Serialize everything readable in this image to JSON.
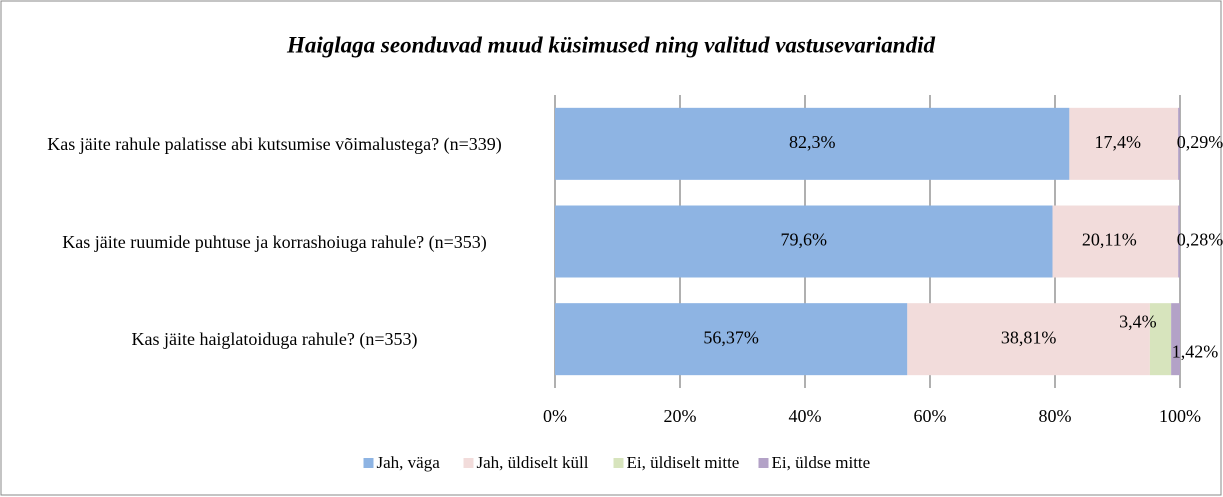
{
  "chart_data": {
    "type": "stacked-bar-horizontal",
    "title": "Haiglaga seonduvad muud küsimused ning valitud vastusevariandid",
    "categories": [
      "Kas jäite rahule palatisse abi kutsumise võimalustega? (n=339)",
      "Kas jäite ruumide puhtuse ja korrashoiuga rahule? (n=353)",
      "Kas jäite haiglatoiduga rahule? (n=353)"
    ],
    "series": [
      {
        "name": "Jah, väga",
        "color": "#8eb4e3",
        "values": [
          82.3,
          79.6,
          56.37
        ],
        "value_labels": [
          "82,3%",
          "79,6%",
          "56,37%"
        ]
      },
      {
        "name": "Jah, üldiselt küll",
        "color": "#f2dcdb",
        "values": [
          17.4,
          20.11,
          38.81
        ],
        "value_labels": [
          "17,4%",
          "20,11%",
          "38,81%"
        ]
      },
      {
        "name": "Ei, üldiselt mitte",
        "color": "#d7e4bd",
        "values": [
          0,
          0,
          3.4
        ],
        "value_labels": [
          null,
          null,
          "3,4%"
        ]
      },
      {
        "name": "Ei, üldse mitte",
        "color": "#b3a2c7",
        "values": [
          0.29,
          0.28,
          1.42
        ],
        "value_labels": [
          "0,29%",
          "0,28%",
          "1,42%"
        ]
      }
    ],
    "xlim": [
      0,
      100
    ],
    "xticks": [
      {
        "value": 0,
        "label": "0%"
      },
      {
        "value": 20,
        "label": "20%"
      },
      {
        "value": 40,
        "label": "40%"
      },
      {
        "value": 60,
        "label": "60%"
      },
      {
        "value": 80,
        "label": "80%"
      },
      {
        "value": 100,
        "label": "100%"
      }
    ],
    "grid": true,
    "legend": "bottom"
  }
}
